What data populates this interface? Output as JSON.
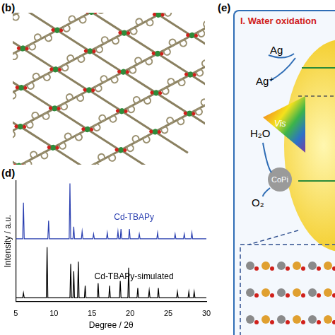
{
  "panels": {
    "b": {
      "label": "(b)"
    },
    "d": {
      "label": "(d)"
    },
    "e": {
      "label": "(e)",
      "title": "I. Water oxidation",
      "texts": {
        "ag": "Ag",
        "ag_ion": "Ag⁺",
        "vis": "Vis",
        "water": "H₂O",
        "oxygen": "O₂",
        "copi": "CoPi"
      }
    }
  },
  "chart_data": {
    "type": "line",
    "x_label": "Degree / 2θ",
    "y_label": "Intensity / a.u.",
    "xlim": [
      5,
      30
    ],
    "xticks": [
      5,
      10,
      15,
      20,
      25,
      30
    ],
    "ylim": [
      0,
      100
    ],
    "tick_labels": "x",
    "grid": false,
    "series": [
      {
        "name": "Cd-TBAPy",
        "color": "#2a3fb0",
        "marker": "none",
        "line_style": "solid",
        "x": [
          5,
          5.9,
          6.0,
          6.1,
          9.2,
          9.3,
          9.4,
          12.0,
          12.1,
          12.2,
          12.5,
          12.6,
          12.7,
          13.6,
          13.7,
          13.8,
          15.1,
          15.2,
          15.3,
          16.9,
          17.0,
          17.1,
          18.3,
          18.4,
          18.5,
          18.7,
          18.8,
          18.9,
          19.8,
          19.9,
          20.0,
          21.1,
          21.2,
          21.3,
          23.5,
          23.6,
          23.7,
          25.8,
          25.9,
          26.0,
          27.0,
          27.1,
          27.2,
          28.0,
          28.1,
          28.2,
          30
        ],
        "values": [
          52,
          52,
          82,
          52,
          52,
          67,
          52,
          52,
          98,
          52,
          52,
          62,
          52,
          52,
          58,
          52,
          52,
          56,
          52,
          52,
          57,
          52,
          52,
          58,
          52,
          52,
          60,
          52,
          52,
          60,
          52,
          52,
          56,
          52,
          52,
          57,
          52,
          52,
          56,
          52,
          52,
          56,
          52,
          52,
          57,
          52,
          52
        ]
      },
      {
        "name": "Cd-TBAPy-simulated",
        "color": "#000000",
        "marker": "none",
        "line_style": "solid",
        "x": [
          5,
          5.9,
          6.0,
          6.1,
          9.0,
          9.1,
          9.2,
          12.1,
          12.2,
          12.3,
          12.5,
          12.6,
          12.7,
          13.1,
          13.2,
          13.3,
          14.0,
          14.1,
          14.2,
          15.7,
          15.8,
          15.9,
          17.2,
          17.3,
          17.4,
          18.6,
          18.7,
          18.8,
          19.7,
          19.8,
          19.9,
          20.9,
          21.0,
          21.1,
          22.4,
          22.5,
          22.6,
          23.6,
          23.7,
          23.8,
          26.1,
          26.2,
          26.3,
          27.6,
          27.7,
          27.8,
          28.3,
          28.4,
          28.5,
          30
        ],
        "values": [
          3,
          3,
          7,
          3,
          3,
          45,
          3,
          3,
          31,
          3,
          3,
          25,
          3,
          3,
          33,
          3,
          3,
          13,
          3,
          3,
          15,
          3,
          3,
          13,
          3,
          3,
          17,
          3,
          3,
          28,
          3,
          3,
          11,
          3,
          3,
          9,
          3,
          3,
          11,
          3,
          3,
          8,
          3,
          3,
          8,
          3,
          3,
          8,
          3,
          3
        ]
      }
    ]
  }
}
